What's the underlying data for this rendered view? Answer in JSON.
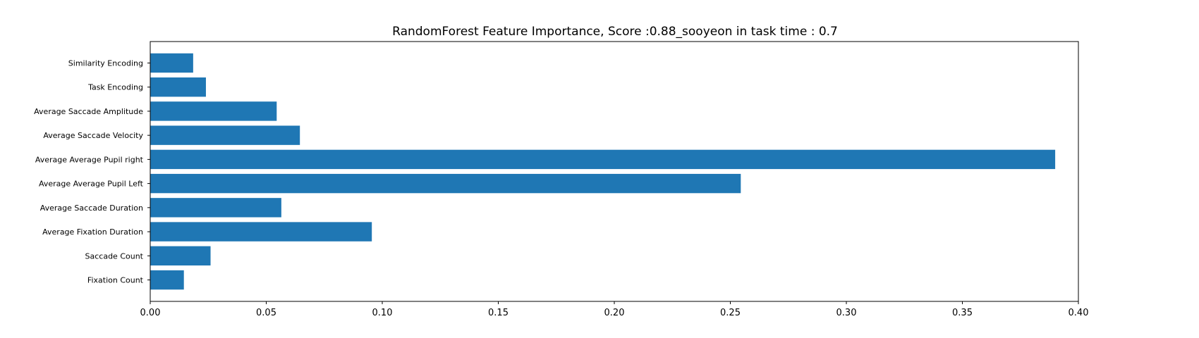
{
  "chart_data": {
    "type": "bar",
    "orientation": "horizontal",
    "title": "RandomForest Feature Importance, Score :0.88_sooyeon in task time : 0.7",
    "categories": [
      "Fixation Count",
      "Saccade Count",
      "Average Fixation Duration",
      "Average Saccade Duration",
      "Average Average Pupil Left",
      "Average Average Pupil right",
      "Average Saccade Velocity",
      "Average Saccade Amplitude",
      "Task Encoding",
      "Similarity Encoding"
    ],
    "values": [
      0.0145,
      0.026,
      0.0955,
      0.0565,
      0.2545,
      0.39,
      0.0645,
      0.0545,
      0.024,
      0.0185
    ],
    "xlim": [
      0.0,
      0.4
    ],
    "xticks": [
      "0.00",
      "0.05",
      "0.10",
      "0.15",
      "0.20",
      "0.25",
      "0.30",
      "0.35",
      "0.40"
    ],
    "xlabel": "",
    "ylabel": "",
    "grid": false,
    "legend": "none",
    "bar_color": "#1f77b4"
  }
}
